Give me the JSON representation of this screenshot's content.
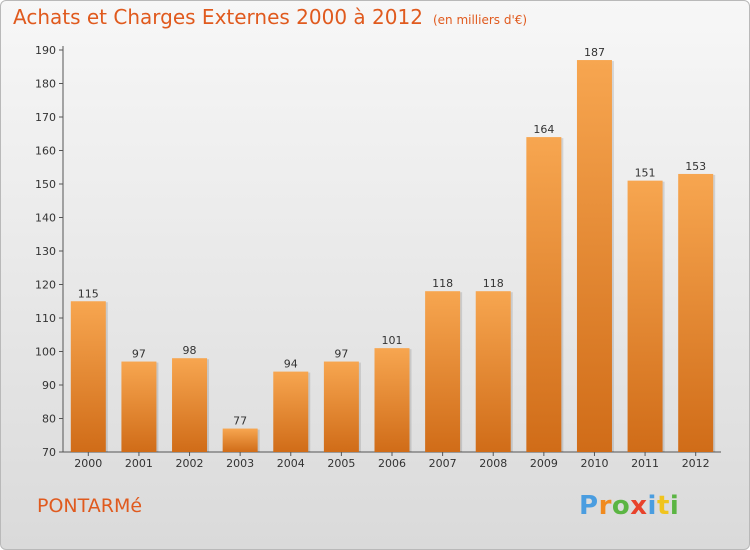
{
  "header": {
    "title": "Achats et Charges Externes 2000 à 2012",
    "unit": "(en milliers d'€)"
  },
  "footer": {
    "commune": "PONTARMé",
    "brand": [
      "P",
      "r",
      "o",
      "x",
      "i",
      "t",
      "i"
    ]
  },
  "colors": {
    "accent": "#e05a1e",
    "bar_top": "#f7a650",
    "bar_bottom": "#d06c18",
    "brand_letters": [
      "#4a9de0",
      "#f08a1e",
      "#5bb543",
      "#e8422b",
      "#4a9de0",
      "#f0c41e",
      "#5bb543"
    ]
  },
  "chart_data": {
    "type": "bar",
    "categories": [
      "2000",
      "2001",
      "2002",
      "2003",
      "2004",
      "2005",
      "2006",
      "2007",
      "2008",
      "2009",
      "2010",
      "2011",
      "2012"
    ],
    "values": [
      115,
      97,
      98,
      77,
      94,
      97,
      101,
      118,
      118,
      164,
      187,
      151,
      153
    ],
    "ylim": [
      70,
      190
    ],
    "yticks": [
      70,
      80,
      90,
      100,
      110,
      120,
      130,
      140,
      150,
      160,
      170,
      180,
      190
    ],
    "grid": false,
    "data_labels": true
  }
}
